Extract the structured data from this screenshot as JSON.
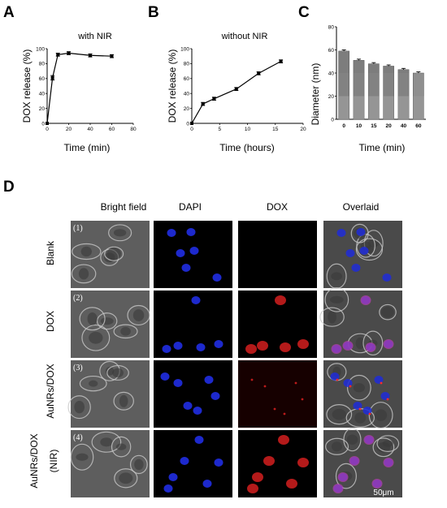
{
  "panels": {
    "a": "A",
    "b": "B",
    "c": "C",
    "d": "D"
  },
  "chart_data": [
    {
      "type": "line",
      "title": "with NIR",
      "xlabel": "Time (min)",
      "ylabel": "DOX release (%)",
      "xlim": [
        0,
        80
      ],
      "ylim": [
        0,
        100
      ],
      "xticks": [
        0,
        20,
        40,
        60,
        80
      ],
      "yticks": [
        0,
        20,
        40,
        60,
        80,
        100
      ],
      "x": [
        0,
        5,
        10,
        20,
        40,
        60
      ],
      "y": [
        0,
        61,
        92,
        94,
        91,
        90
      ],
      "err": [
        0,
        3,
        2,
        2,
        2,
        2
      ]
    },
    {
      "type": "line",
      "title": "without NIR",
      "xlabel": "Time (hours)",
      "ylabel": "DOX release (%)",
      "xlim": [
        0,
        20
      ],
      "ylim": [
        0,
        100
      ],
      "xticks": [
        0,
        5,
        10,
        15,
        20
      ],
      "yticks": [
        0,
        20,
        40,
        60,
        80,
        100
      ],
      "x": [
        0,
        2,
        4,
        8,
        12,
        16
      ],
      "y": [
        0,
        26,
        33,
        46,
        67,
        83
      ],
      "err": [
        0,
        2,
        2,
        2,
        2,
        2
      ]
    },
    {
      "type": "bar",
      "xlabel": "Time (min)",
      "ylabel": "Diameter (nm)",
      "ylim": [
        0,
        80
      ],
      "yticks": [
        0,
        20,
        40,
        60,
        80
      ],
      "categories": [
        "0",
        "10",
        "15",
        "20",
        "40",
        "60"
      ],
      "values": [
        59,
        51,
        48,
        46,
        43,
        40
      ],
      "err": [
        1,
        1,
        1,
        1,
        1,
        1
      ]
    }
  ],
  "micrograph": {
    "columns": [
      "Bright field",
      "DAPI",
      "DOX",
      "Overlaid"
    ],
    "rows": [
      {
        "label": "Blank",
        "num": "(1)"
      },
      {
        "label": "DOX",
        "num": "(2)"
      },
      {
        "label": "AuNRs/DOX",
        "num": "(3)"
      },
      {
        "label": "AuNRs/DOX",
        "label2": "(NIR)",
        "num": "(4)"
      }
    ],
    "scale_bar": "50μm"
  }
}
